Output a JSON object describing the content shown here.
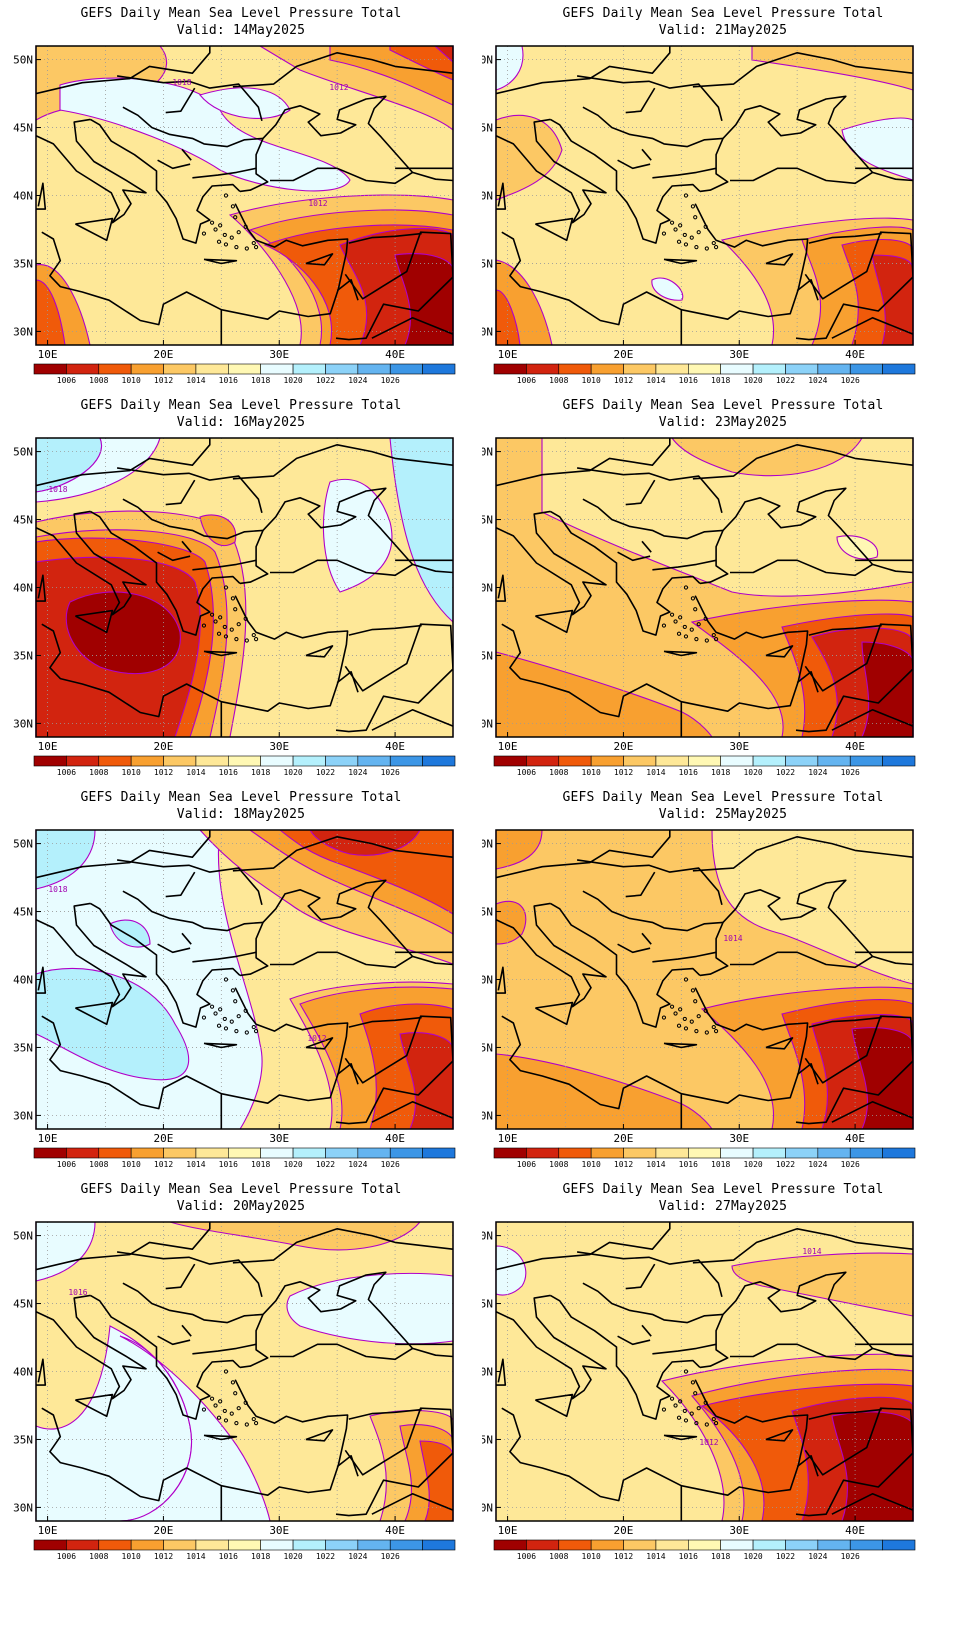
{
  "figure": {
    "colorbar": {
      "labels": [
        "1006",
        "1008",
        "1010",
        "1012",
        "1014",
        "1016",
        "1018",
        "1020",
        "1022",
        "1024",
        "1026"
      ],
      "colors": [
        "#a00000",
        "#d2240f",
        "#f05a0a",
        "#f8a030",
        "#fcc864",
        "#fee898",
        "#fff8b4",
        "#e8fcff",
        "#b4f0fc",
        "#8cd2f8",
        "#64b4f0",
        "#3c96e6",
        "#1e78dc"
      ]
    },
    "x_ticks": [
      "10E",
      "20E",
      "30E",
      "40E"
    ],
    "y_ticks": [
      "50N",
      "45N",
      "40N",
      "35N",
      "30N"
    ],
    "panels": [
      {
        "title": "GEFS Daily Mean Sea Level Pressure Total",
        "valid": "Valid: 14May2025",
        "contour_labels": [
          "1018",
          "1012",
          "1012"
        ]
      },
      {
        "title": "GEFS Daily Mean Sea Level Pressure Total",
        "valid": "Valid: 21May2025",
        "contour_labels": []
      },
      {
        "title": "GEFS Daily Mean Sea Level Pressure Total",
        "valid": "Valid: 16May2025",
        "contour_labels": [
          "1018"
        ]
      },
      {
        "title": "GEFS Daily Mean Sea Level Pressure Total",
        "valid": "Valid: 23May2025",
        "contour_labels": []
      },
      {
        "title": "GEFS Daily Mean Sea Level Pressure Total",
        "valid": "Valid: 18May2025",
        "contour_labels": [
          "1018",
          "1012"
        ]
      },
      {
        "title": "GEFS Daily Mean Sea Level Pressure Total",
        "valid": "Valid: 25May2025",
        "contour_labels": [
          "1014"
        ]
      },
      {
        "title": "GEFS Daily Mean Sea Level Pressure Total",
        "valid": "Valid: 20May2025",
        "contour_labels": [
          "1016"
        ]
      },
      {
        "title": "GEFS Daily Mean Sea Level Pressure Total",
        "valid": "Valid: 27May2025",
        "contour_labels": [
          "1014",
          "1012"
        ]
      }
    ]
  }
}
